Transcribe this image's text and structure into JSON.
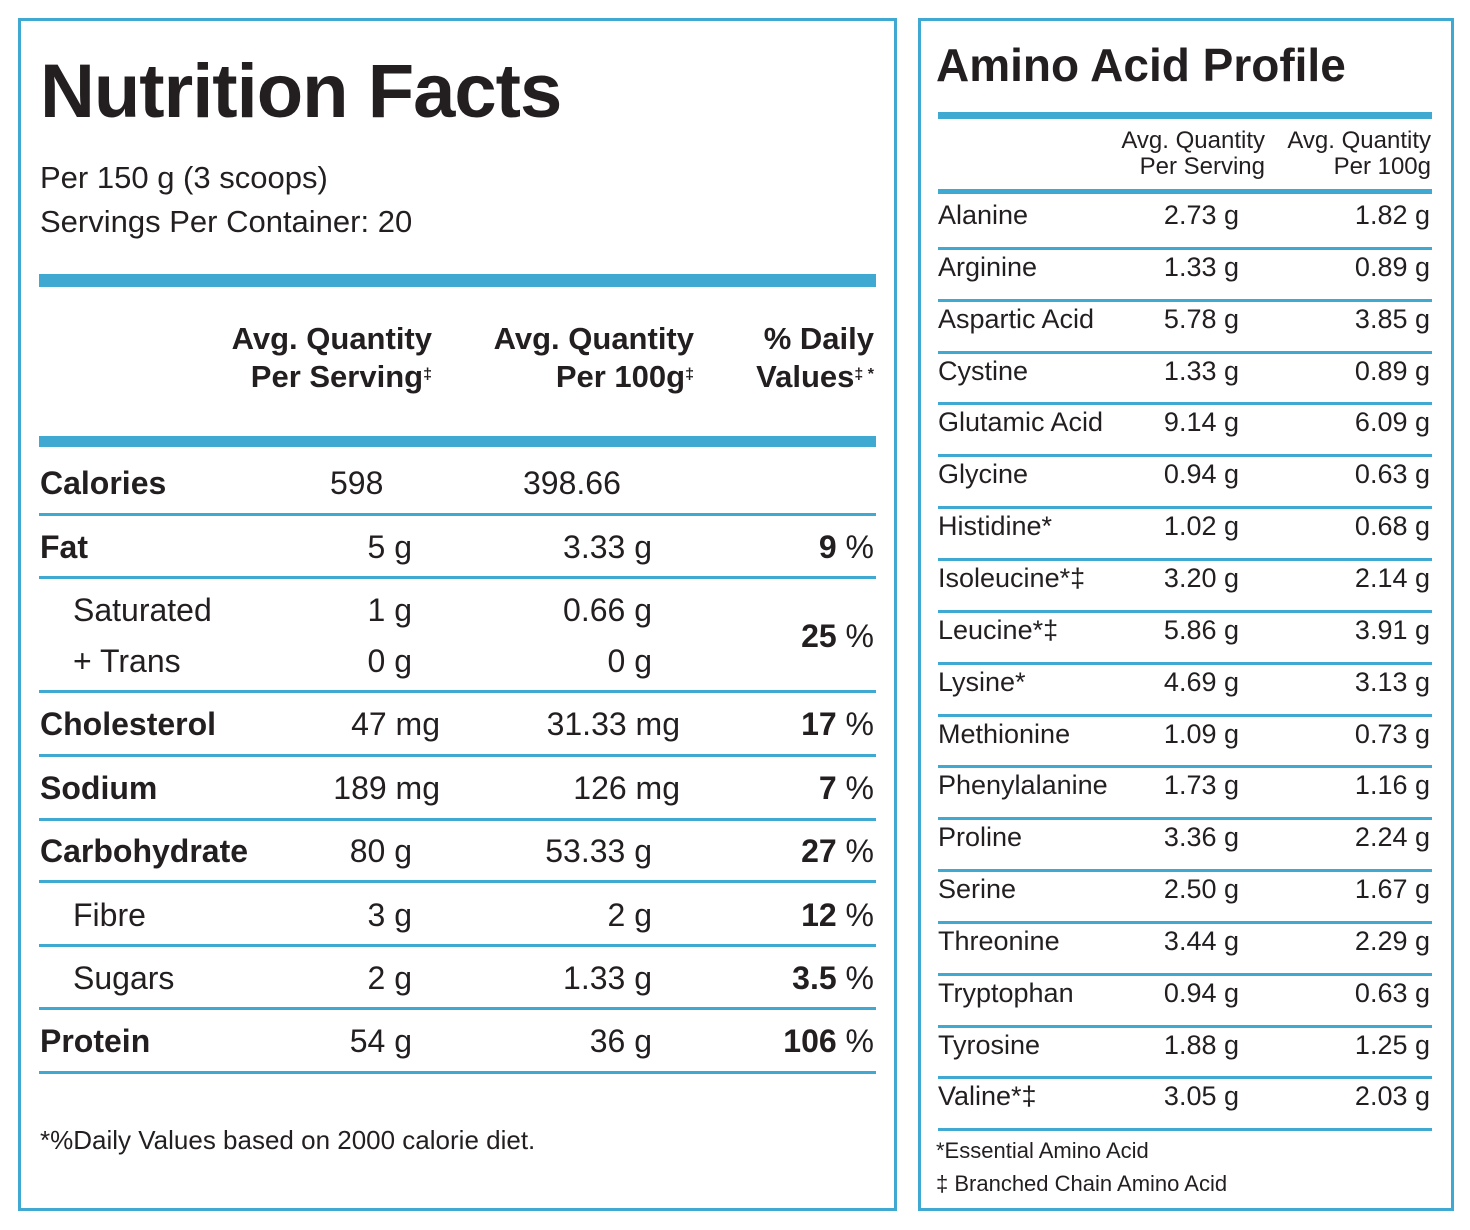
{
  "nutrition": {
    "title": "Nutrition Facts",
    "per": "Per 150 g (3 scoops)",
    "servings": "Servings Per Container: 20",
    "headers": {
      "serving_line1": "Avg. Quantity",
      "serving_line2": "Per Serving",
      "serving_mark": "‡",
      "per100_line1": "Avg. Quantity",
      "per100_line2": "Per 100g",
      "per100_mark": "‡",
      "dv_line1": "% Daily",
      "dv_line2": "Values",
      "dv_mark": "‡ *"
    },
    "rows": {
      "calories": {
        "name": "Calories",
        "serving": "598",
        "per100": "398.66",
        "dv": ""
      },
      "fat": {
        "name": "Fat",
        "serving": "5 g",
        "per100": "3.33 g",
        "dv_num": "9",
        "dv_pct": "%"
      },
      "saturated": {
        "name": "Saturated",
        "serving": "1 g",
        "per100": "0.66 g"
      },
      "trans": {
        "name": "+ Trans",
        "serving": "0 g",
        "per100": "0 g"
      },
      "sat_trans_dv": {
        "dv_num": "25",
        "dv_pct": "%"
      },
      "cholesterol": {
        "name": "Cholesterol",
        "serving": "47 mg",
        "per100": "31.33 mg",
        "dv_num": "17",
        "dv_pct": "%"
      },
      "sodium": {
        "name": "Sodium",
        "serving": "189 mg",
        "per100": "126 mg",
        "dv_num": "7",
        "dv_pct": "%"
      },
      "carbohydrate": {
        "name": "Carbohydrate",
        "serving": "80 g",
        "per100": "53.33 g",
        "dv_num": "27",
        "dv_pct": "%"
      },
      "fibre": {
        "name": "Fibre",
        "serving": "3 g",
        "per100": "2 g",
        "dv_num": "12",
        "dv_pct": "%"
      },
      "sugars": {
        "name": "Sugars",
        "serving": "2 g",
        "per100": "1.33 g",
        "dv_num": "3.5",
        "dv_pct": "%"
      },
      "protein": {
        "name": "Protein",
        "serving": "54 g",
        "per100": "36 g",
        "dv_num": "106",
        "dv_pct": "%"
      }
    },
    "footnote": "*%Daily Values based on 2000 calorie diet."
  },
  "amino": {
    "title": "Amino Acid Profile",
    "header_serving_1": "Avg. Quantity",
    "header_serving_2": "Per Serving",
    "header_100g_1": "Avg. Quantity",
    "header_100g_2": "Per 100g",
    "rows": [
      {
        "name": "Alanine",
        "serving": "2.73 g",
        "per100": "1.82 g"
      },
      {
        "name": "Arginine",
        "serving": "1.33 g",
        "per100": "0.89 g"
      },
      {
        "name": "Aspartic Acid",
        "serving": "5.78 g",
        "per100": "3.85 g"
      },
      {
        "name": "Cystine",
        "serving": "1.33 g",
        "per100": "0.89 g"
      },
      {
        "name": "Glutamic Acid",
        "serving": "9.14 g",
        "per100": "6.09 g"
      },
      {
        "name": "Glycine",
        "serving": "0.94 g",
        "per100": "0.63 g"
      },
      {
        "name": "Histidine*",
        "serving": "1.02 g",
        "per100": "0.68 g"
      },
      {
        "name": "Isoleucine*‡",
        "serving": "3.20 g",
        "per100": "2.14 g"
      },
      {
        "name": "Leucine*‡",
        "serving": "5.86 g",
        "per100": "3.91 g"
      },
      {
        "name": "Lysine*",
        "serving": "4.69 g",
        "per100": "3.13 g"
      },
      {
        "name": "Methionine",
        "serving": "1.09 g",
        "per100": "0.73 g"
      },
      {
        "name": "Phenylalanine",
        "serving": "1.73 g",
        "per100": "1.16 g"
      },
      {
        "name": "Proline",
        "serving": "3.36 g",
        "per100": "2.24 g"
      },
      {
        "name": "Serine",
        "serving": "2.50 g",
        "per100": "1.67 g"
      },
      {
        "name": "Threonine",
        "serving": "3.44 g",
        "per100": "2.29 g"
      },
      {
        "name": "Tryptophan",
        "serving": "0.94 g",
        "per100": "0.63 g"
      },
      {
        "name": "Tyrosine",
        "serving": "1.88 g",
        "per100": "1.25 g"
      },
      {
        "name": "Valine*‡",
        "serving": "3.05 g",
        "per100": "2.03 g"
      }
    ],
    "footnote_1": "*Essential Amino Acid",
    "footnote_2": "‡ Branched Chain Amino Acid"
  },
  "colors": {
    "accent": "#3fa9d1",
    "text": "#231f20"
  }
}
